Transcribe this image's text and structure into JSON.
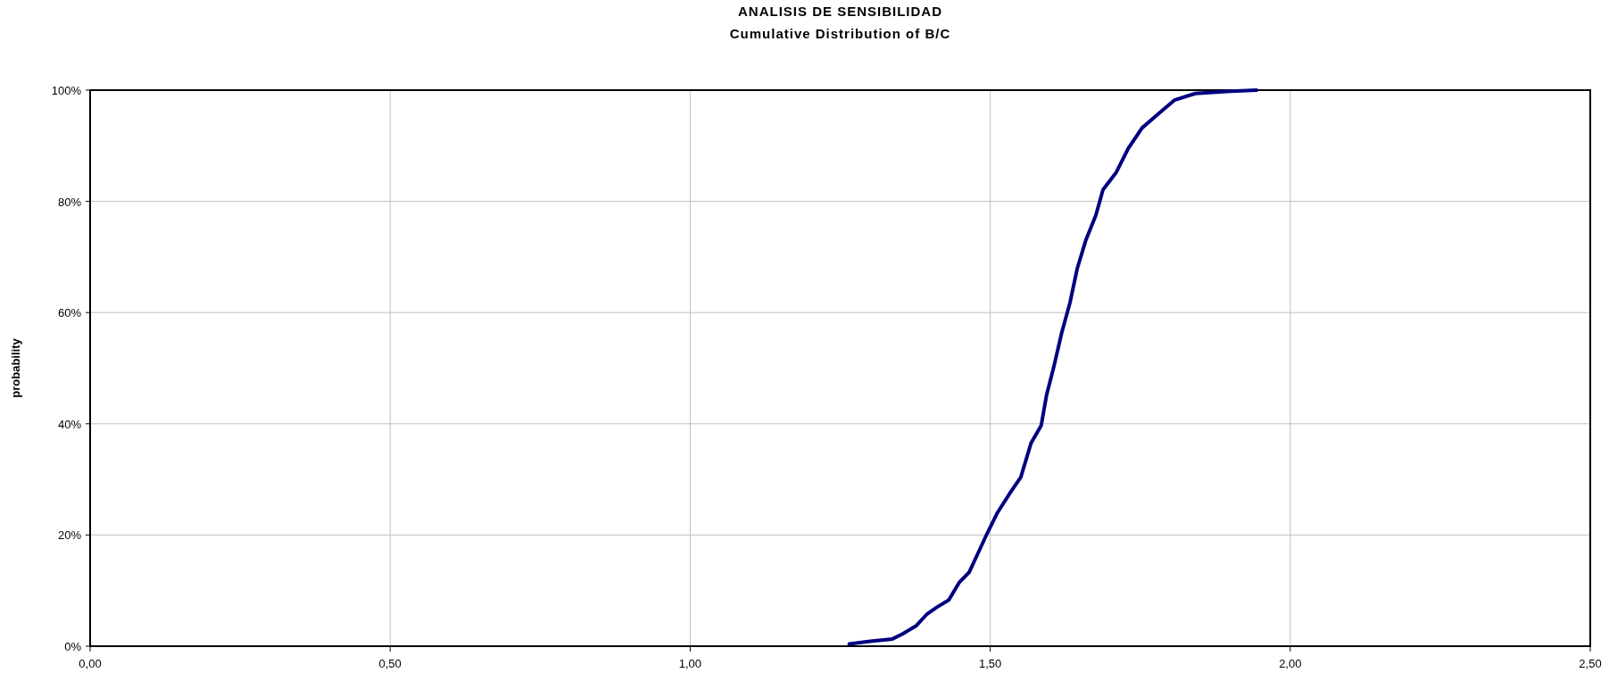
{
  "chart_data": {
    "type": "line",
    "title": "ANALISIS DE SENSIBILIDAD",
    "subtitle": "Cumulative Distribution of B/C",
    "ylabel": "probability",
    "x": [
      1.265,
      1.3,
      1.337,
      1.354,
      1.377,
      1.394,
      1.411,
      1.431,
      1.448,
      1.465,
      1.483,
      1.495,
      1.512,
      1.534,
      1.551,
      1.568,
      1.585,
      1.594,
      1.607,
      1.619,
      1.633,
      1.645,
      1.659,
      1.676,
      1.688,
      1.71,
      1.73,
      1.753,
      1.782,
      1.807,
      1.842,
      1.9,
      1.944
    ],
    "series": [
      {
        "color": "#000080",
        "values": [
          0.4,
          0.9,
          1.3,
          2.2,
          3.7,
          5.7,
          7.0,
          8.3,
          11.4,
          13.3,
          17.5,
          20.3,
          24,
          27.7,
          30.4,
          36.5,
          39.7,
          45.2,
          50.7,
          56.3,
          61.8,
          67.9,
          72.9,
          77.5,
          82.1,
          85.2,
          89.5,
          93.2,
          95.9,
          98.2,
          99.4,
          99.8,
          100
        ]
      }
    ],
    "xlim": [
      0,
      2.5
    ],
    "xticks": [
      {
        "value": 0,
        "label": "0,00"
      },
      {
        "value": 0.5,
        "label": "0,50"
      },
      {
        "value": 1,
        "label": "1,00"
      },
      {
        "value": 1.5,
        "label": "1,50"
      },
      {
        "value": 2,
        "label": "2,00"
      },
      {
        "value": 2.5,
        "label": "2,50"
      }
    ],
    "ylim": [
      0,
      100
    ],
    "yticks": [
      {
        "value": 0,
        "label": "0%"
      },
      {
        "value": 20,
        "label": "20%"
      },
      {
        "value": 40,
        "label": "40%"
      },
      {
        "value": 60,
        "label": "60%"
      },
      {
        "value": 80,
        "label": "80%"
      },
      {
        "value": 100,
        "label": "100%"
      }
    ],
    "grid": true,
    "marker": "none",
    "line_style": "solid"
  }
}
